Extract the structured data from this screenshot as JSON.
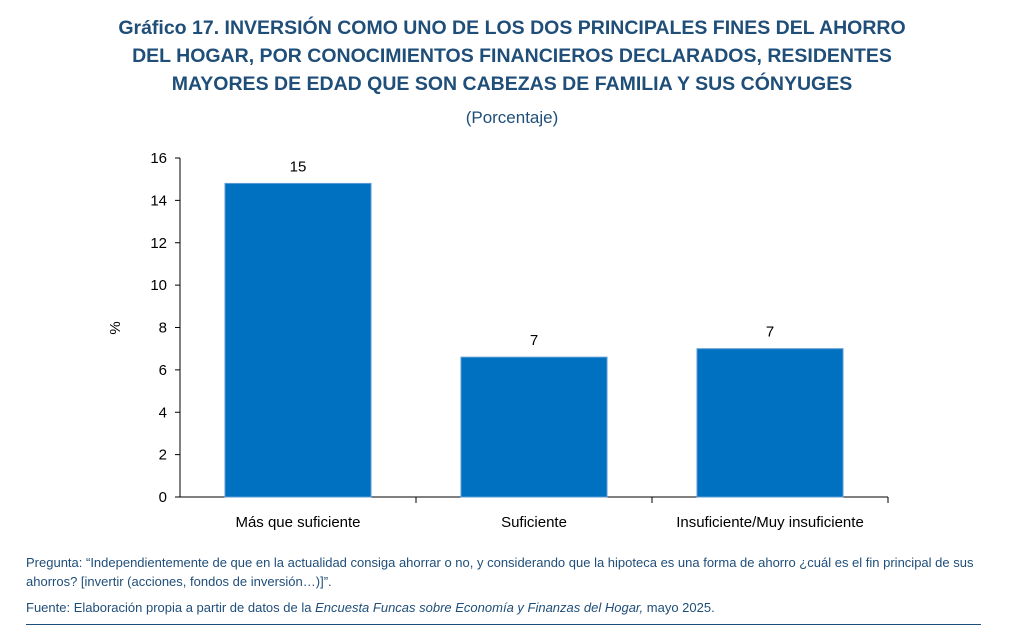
{
  "title_lines": [
    "Gráfico 17. INVERSIÓN COMO UNO DE LOS DOS PRINCIPALES FINES DEL AHORRO",
    "DEL HOGAR, POR CONOCIMIENTOS FINANCIEROS DECLARADOS, RESIDENTES",
    "MAYORES DE EDAD QUE SON CABEZAS DE FAMILIA Y SUS CÓNYUGES"
  ],
  "subtitle": "(Porcentaje)",
  "chart_data": {
    "type": "bar",
    "categories": [
      "Más que suficiente",
      "Suficiente",
      "Insuficiente/Muy insuficiente"
    ],
    "values": [
      14.8,
      6.6,
      7.0
    ],
    "data_labels": [
      "15",
      "7",
      "7"
    ],
    "ylabel": "%",
    "xlabel": "",
    "ylim": [
      0,
      16
    ],
    "yticks": [
      0,
      2,
      4,
      6,
      8,
      10,
      12,
      14,
      16
    ],
    "grid": false,
    "bar_color": "#0070c0"
  },
  "notes": {
    "question": "Pregunta: “Independientemente de que en la actualidad consiga ahorrar o no, y considerando que la hipoteca es una forma de ahorro ¿cuál es el fin principal de sus ahorros? [invertir (acciones, fondos de inversión…)]”.",
    "source_prefix": "Fuente: Elaboración propia a partir de datos de la ",
    "source_italic": "Encuesta Funcas sobre Economía y Finanzas del Hogar,",
    "source_suffix": " mayo 2025."
  }
}
